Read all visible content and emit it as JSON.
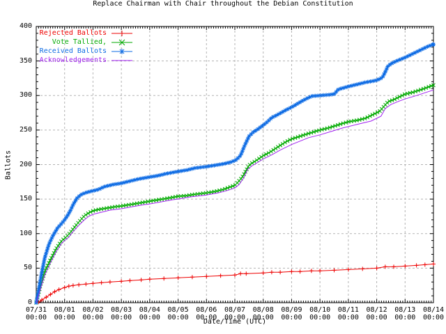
{
  "window": {
    "background": "#ffffff",
    "text_color": "#000000"
  },
  "chart_data": {
    "type": "line",
    "title": "Replace Chairman with Chair throughout the Debian Constitution",
    "xlabel": "Date/Time (UTC)",
    "ylabel": "Ballots",
    "xlim": [
      0,
      14
    ],
    "ylim": [
      0,
      400
    ],
    "grid": "dashed",
    "grid_color": "#b3b3b3",
    "axis_color": "#000000",
    "legend_position": "top-left-inside",
    "y_ticks": [
      0,
      50,
      100,
      150,
      200,
      250,
      300,
      350,
      400
    ],
    "x_tick_dates": [
      "07/31",
      "08/01",
      "08/02",
      "08/03",
      "08/04",
      "08/05",
      "08/06",
      "08/07",
      "08/08",
      "08/09",
      "08/10",
      "08/11",
      "08/12",
      "08/13",
      "08/14"
    ],
    "x_tick_time": "00:00",
    "series": [
      {
        "name": "Rejected Ballots",
        "color": "#ee0000",
        "marker": "plus",
        "x": [
          0,
          0.08,
          0.2,
          0.35,
          0.5,
          0.65,
          0.8,
          1.0,
          1.15,
          1.3,
          1.5,
          1.75,
          2.0,
          2.3,
          2.6,
          3.0,
          3.3,
          3.7,
          4.0,
          4.5,
          5.0,
          5.5,
          6.0,
          6.5,
          7.0,
          7.2,
          7.4,
          8.0,
          8.3,
          8.6,
          9.0,
          9.3,
          9.7,
          10.0,
          10.5,
          11.0,
          11.5,
          12.0,
          12.3,
          12.6,
          13.0,
          13.4,
          13.7,
          14.0
        ],
        "y": [
          0,
          1,
          4,
          8,
          12,
          16,
          19,
          22,
          24,
          25,
          26,
          27,
          28,
          29,
          30,
          31,
          32,
          33,
          34,
          35,
          36,
          37,
          38,
          39,
          40,
          42,
          42,
          43,
          44,
          44,
          45,
          45,
          46,
          46,
          47,
          48,
          49,
          50,
          52,
          52,
          53,
          54,
          55,
          56
        ]
      },
      {
        "name": "Vote Tallied,",
        "color": "#00aa00",
        "marker": "cross",
        "x": [
          0,
          0.15,
          0.3,
          0.5,
          0.7,
          0.9,
          1.0,
          1.1,
          1.25,
          1.4,
          1.55,
          1.7,
          1.85,
          2.0,
          2.2,
          2.5,
          2.8,
          3.0,
          3.3,
          3.6,
          4.0,
          4.3,
          4.6,
          5.0,
          5.3,
          5.6,
          6.0,
          6.3,
          6.6,
          6.8,
          7.0,
          7.1,
          7.25,
          7.35,
          7.5,
          7.6,
          7.8,
          8.0,
          8.2,
          8.5,
          8.8,
          9.0,
          9.3,
          9.6,
          10.0,
          10.3,
          10.6,
          11.0,
          11.3,
          11.6,
          12.0,
          12.1,
          12.25,
          12.4,
          12.6,
          12.8,
          13.0,
          13.3,
          13.6,
          13.8,
          14.0
        ],
        "y": [
          0,
          25,
          45,
          62,
          78,
          90,
          93,
          97,
          104,
          112,
          119,
          126,
          130,
          133,
          135,
          137,
          139,
          140,
          142,
          144,
          147,
          149,
          151,
          154,
          155,
          157,
          159,
          161,
          164,
          167,
          170,
          174,
          181,
          188,
          199,
          202,
          207,
          213,
          217,
          225,
          233,
          237,
          241,
          245,
          250,
          253,
          257,
          262,
          264,
          267,
          275,
          277,
          284,
          291,
          294,
          298,
          302,
          305,
          309,
          312,
          315
        ]
      },
      {
        "name": "Received Ballots",
        "color": "#0d6be4",
        "marker": "star",
        "x": [
          0,
          0.1,
          0.2,
          0.3,
          0.45,
          0.6,
          0.75,
          0.9,
          1.0,
          1.1,
          1.2,
          1.3,
          1.45,
          1.6,
          1.8,
          2.0,
          2.2,
          2.4,
          2.7,
          3.0,
          3.3,
          3.6,
          4.0,
          4.3,
          4.6,
          5.0,
          5.3,
          5.6,
          6.0,
          6.3,
          6.6,
          6.9,
          7.05,
          7.2,
          7.35,
          7.5,
          7.65,
          7.8,
          8.0,
          8.15,
          8.3,
          8.5,
          8.8,
          9.0,
          9.2,
          9.5,
          9.7,
          10.0,
          10.3,
          10.5,
          10.65,
          11.0,
          11.3,
          11.6,
          12.0,
          12.1,
          12.2,
          12.3,
          12.4,
          12.55,
          12.7,
          13.0,
          13.3,
          13.6,
          13.8,
          14.0
        ],
        "y": [
          0,
          22,
          45,
          65,
          85,
          98,
          108,
          115,
          120,
          126,
          133,
          142,
          152,
          157,
          160,
          162,
          164,
          168,
          171,
          173,
          176,
          179,
          182,
          184,
          187,
          190,
          192,
          195,
          197,
          199,
          201,
          204,
          207,
          213,
          228,
          241,
          247,
          251,
          257,
          262,
          268,
          272,
          279,
          283,
          288,
          295,
          299,
          300,
          301,
          302,
          309,
          313,
          316,
          319,
          322,
          324,
          326,
          334,
          343,
          347,
          350,
          355,
          361,
          367,
          371,
          374
        ]
      },
      {
        "name": "Acknowledgements",
        "color": "#a020f0",
        "marker": "none",
        "x": [
          0,
          0.15,
          0.3,
          0.5,
          0.7,
          0.9,
          1.0,
          1.15,
          1.3,
          1.5,
          1.7,
          1.85,
          2.0,
          2.3,
          2.6,
          3.0,
          3.4,
          3.8,
          4.0,
          4.4,
          4.8,
          5.0,
          5.4,
          5.8,
          6.0,
          6.4,
          6.7,
          7.0,
          7.15,
          7.3,
          7.45,
          7.6,
          7.8,
          8.0,
          8.3,
          8.6,
          9.0,
          9.3,
          9.6,
          10.0,
          10.4,
          10.8,
          11.0,
          11.4,
          11.8,
          12.0,
          12.15,
          12.3,
          12.5,
          12.8,
          13.0,
          13.4,
          13.7,
          14.0
        ],
        "y": [
          0,
          20,
          40,
          58,
          74,
          86,
          90,
          95,
          103,
          112,
          120,
          125,
          128,
          131,
          134,
          136,
          139,
          142,
          143,
          146,
          149,
          150,
          153,
          155,
          156,
          159,
          162,
          166,
          171,
          180,
          193,
          198,
          203,
          208,
          214,
          221,
          229,
          234,
          239,
          243,
          248,
          253,
          255,
          259,
          263,
          267,
          270,
          281,
          287,
          292,
          295,
          300,
          304,
          308
        ]
      }
    ]
  }
}
